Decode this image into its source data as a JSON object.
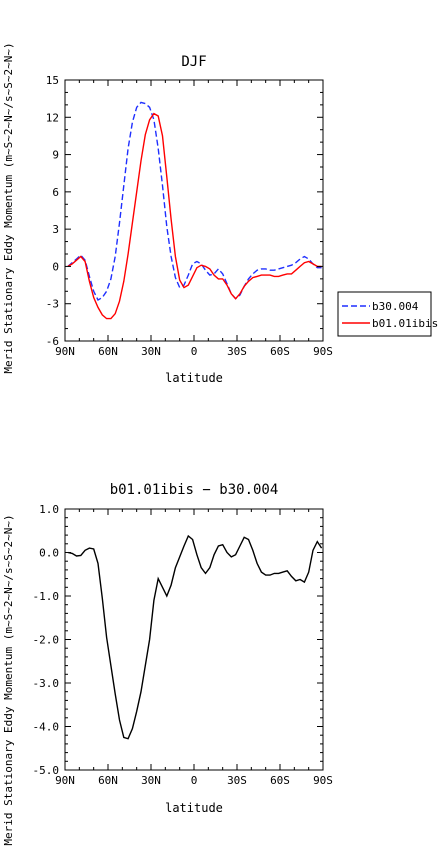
{
  "chart_data": [
    {
      "type": "line",
      "title": "DJF",
      "xlabel": "latitude",
      "ylabel": "Merid Stationary Eddy Momentum (m~S~2~N~/s~S~2~N~)",
      "xlim": [
        90,
        -90
      ],
      "ylim": [
        -6,
        15
      ],
      "x_ticks": [
        90,
        60,
        30,
        0,
        -30,
        -60,
        -90
      ],
      "x_tick_labels": [
        "90N",
        "60N",
        "30N",
        "0",
        "30S",
        "60S",
        "90S"
      ],
      "y_ticks": [
        -6,
        -3,
        0,
        3,
        6,
        9,
        12,
        15
      ],
      "y_tick_labels": [
        "-6",
        "-3",
        "0",
        "3",
        "6",
        "9",
        "12",
        "15"
      ],
      "legend_position": "right",
      "series": [
        {
          "name": "b30.004",
          "color": "#1f2fff",
          "dash": "dashed",
          "x": [
            88,
            85,
            82,
            79,
            76,
            73,
            70,
            67,
            64,
            61,
            58,
            55,
            52,
            49,
            46,
            43,
            40,
            37,
            34,
            31,
            28,
            25,
            22,
            19,
            16,
            13,
            10,
            7,
            4,
            1,
            -2,
            -5,
            -8,
            -11,
            -14,
            -17,
            -20,
            -23,
            -26,
            -29,
            -32,
            -35,
            -38,
            -41,
            -44,
            -47,
            -50,
            -53,
            -56,
            -59,
            -62,
            -65,
            -68,
            -71,
            -74,
            -77,
            -80,
            -83,
            -86,
            -89
          ],
          "y": [
            0.0,
            0.3,
            0.6,
            0.9,
            0.5,
            -0.8,
            -2.0,
            -2.7,
            -2.5,
            -2.0,
            -1.0,
            0.8,
            3.5,
            6.5,
            9.5,
            11.6,
            12.8,
            13.2,
            13.1,
            12.8,
            11.8,
            9.5,
            6.5,
            3.2,
            0.8,
            -0.9,
            -1.7,
            -1.5,
            -0.7,
            0.2,
            0.4,
            0.2,
            -0.3,
            -0.7,
            -0.6,
            -0.2,
            -0.6,
            -1.4,
            -2.2,
            -2.6,
            -2.3,
            -1.6,
            -1.0,
            -0.6,
            -0.3,
            -0.2,
            -0.2,
            -0.3,
            -0.3,
            -0.2,
            -0.1,
            0.0,
            0.1,
            0.3,
            0.6,
            0.8,
            0.6,
            0.2,
            -0.1,
            -0.1
          ]
        },
        {
          "name": "b01.01ibis",
          "color": "#ff0000",
          "dash": "solid",
          "x": [
            88,
            85,
            82,
            79,
            76,
            73,
            70,
            67,
            64,
            61,
            58,
            55,
            52,
            49,
            46,
            43,
            40,
            37,
            34,
            31,
            28,
            25,
            22,
            19,
            16,
            13,
            10,
            7,
            4,
            1,
            -2,
            -5,
            -8,
            -11,
            -14,
            -17,
            -20,
            -23,
            -26,
            -29,
            -32,
            -35,
            -38,
            -41,
            -44,
            -47,
            -50,
            -53,
            -56,
            -59,
            -62,
            -65,
            -68,
            -71,
            -74,
            -77,
            -80,
            -83,
            -86,
            -89
          ],
          "y": [
            0.0,
            0.2,
            0.5,
            0.8,
            0.4,
            -1.2,
            -2.5,
            -3.3,
            -3.9,
            -4.2,
            -4.2,
            -3.8,
            -2.8,
            -1.2,
            1.0,
            3.5,
            6.0,
            8.5,
            10.6,
            11.8,
            12.3,
            12.1,
            10.5,
            7.2,
            3.8,
            0.8,
            -1.1,
            -1.7,
            -1.5,
            -0.8,
            -0.1,
            0.1,
            0.0,
            -0.2,
            -0.7,
            -1.0,
            -1.0,
            -1.5,
            -2.2,
            -2.6,
            -2.2,
            -1.6,
            -1.2,
            -0.9,
            -0.8,
            -0.7,
            -0.7,
            -0.7,
            -0.8,
            -0.8,
            -0.7,
            -0.6,
            -0.6,
            -0.3,
            0.0,
            0.3,
            0.4,
            0.2,
            0.0,
            0.0
          ]
        }
      ]
    },
    {
      "type": "line",
      "title": "b01.01ibis − b30.004",
      "xlabel": "latitude",
      "ylabel": "Merid Stationary Eddy Momentum (m~S~2~N~/s~S~2~N~)",
      "xlim": [
        90,
        -90
      ],
      "ylim": [
        -5,
        1
      ],
      "x_ticks": [
        90,
        60,
        30,
        0,
        -30,
        -60,
        -90
      ],
      "x_tick_labels": [
        "90N",
        "60N",
        "30N",
        "0",
        "30S",
        "60S",
        "90S"
      ],
      "y_ticks": [
        -5,
        -4,
        -3,
        -2,
        -1,
        0,
        1
      ],
      "y_tick_labels": [
        "-5.0",
        "-4.0",
        "-3.0",
        "-2.0",
        "-1.0",
        "0.0",
        "1.0"
      ],
      "series": [
        {
          "color": "#000000",
          "dash": "solid",
          "x": [
            88,
            85,
            82,
            79,
            76,
            73,
            70,
            67,
            64,
            61,
            58,
            55,
            52,
            49,
            46,
            43,
            40,
            37,
            34,
            31,
            28,
            25,
            22,
            19,
            16,
            13,
            10,
            7,
            4,
            1,
            -2,
            -5,
            -8,
            -11,
            -14,
            -17,
            -20,
            -23,
            -26,
            -29,
            -32,
            -35,
            -38,
            -41,
            -44,
            -47,
            -50,
            -53,
            -56,
            -59,
            -62,
            -65,
            -68,
            -71,
            -74,
            -77,
            -80,
            -83,
            -86,
            -89
          ],
          "y": [
            0.0,
            -0.02,
            -0.08,
            -0.07,
            0.05,
            0.1,
            0.08,
            -0.25,
            -1.05,
            -1.95,
            -2.6,
            -3.25,
            -3.85,
            -4.25,
            -4.28,
            -4.05,
            -3.65,
            -3.2,
            -2.6,
            -2.0,
            -1.1,
            -0.6,
            -0.8,
            -1.0,
            -0.75,
            -0.35,
            -0.1,
            0.15,
            0.38,
            0.3,
            -0.05,
            -0.35,
            -0.48,
            -0.35,
            -0.05,
            0.15,
            0.18,
            0.0,
            -0.1,
            -0.05,
            0.15,
            0.35,
            0.3,
            0.05,
            -0.25,
            -0.45,
            -0.52,
            -0.52,
            -0.48,
            -0.48,
            -0.45,
            -0.42,
            -0.55,
            -0.65,
            -0.62,
            -0.68,
            -0.45,
            0.05,
            0.25,
            0.1
          ]
        }
      ]
    }
  ]
}
